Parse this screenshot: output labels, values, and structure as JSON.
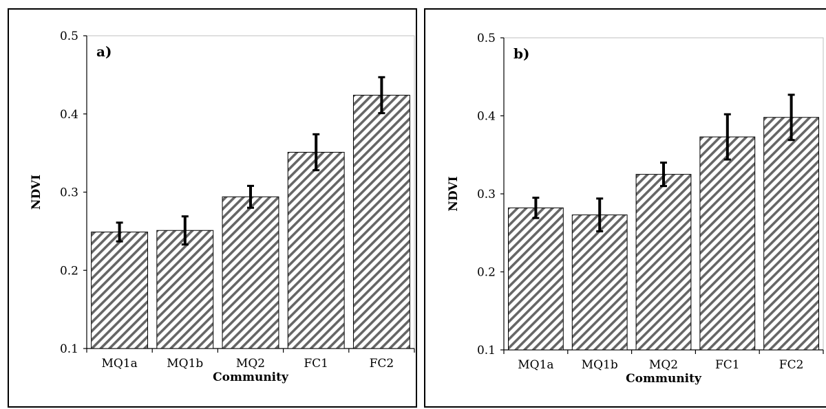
{
  "chart_data": [
    {
      "type": "bar",
      "panel_label": "a)",
      "categories": [
        "MQ1a",
        "MQ1b",
        "MQ2",
        "FC1",
        "FC2"
      ],
      "values": [
        0.249,
        0.251,
        0.294,
        0.351,
        0.424
      ],
      "error": [
        0.012,
        0.018,
        0.014,
        0.023,
        0.023
      ],
      "xlabel": "Community",
      "ylabel": "NDVI",
      "ylim": [
        0.1,
        0.5
      ],
      "yticks": [
        "0.1",
        "0.2",
        "0.3",
        "0.4",
        "0.5"
      ],
      "grid": false,
      "fill": "diagonal-hatch",
      "bar_color": "#666666"
    },
    {
      "type": "bar",
      "panel_label": "b)",
      "categories": [
        "MQ1a",
        "MQ1b",
        "MQ2",
        "FC1",
        "FC2"
      ],
      "values": [
        0.282,
        0.273,
        0.325,
        0.373,
        0.398
      ],
      "error": [
        0.013,
        0.021,
        0.015,
        0.029,
        0.029
      ],
      "xlabel": "Community",
      "ylabel": "NDVI",
      "ylim": [
        0.1,
        0.5
      ],
      "yticks": [
        "0.1",
        "0.2",
        "0.3",
        "0.4",
        "0.5"
      ],
      "grid": false,
      "fill": "diagonal-hatch",
      "bar_color": "#666666"
    }
  ]
}
